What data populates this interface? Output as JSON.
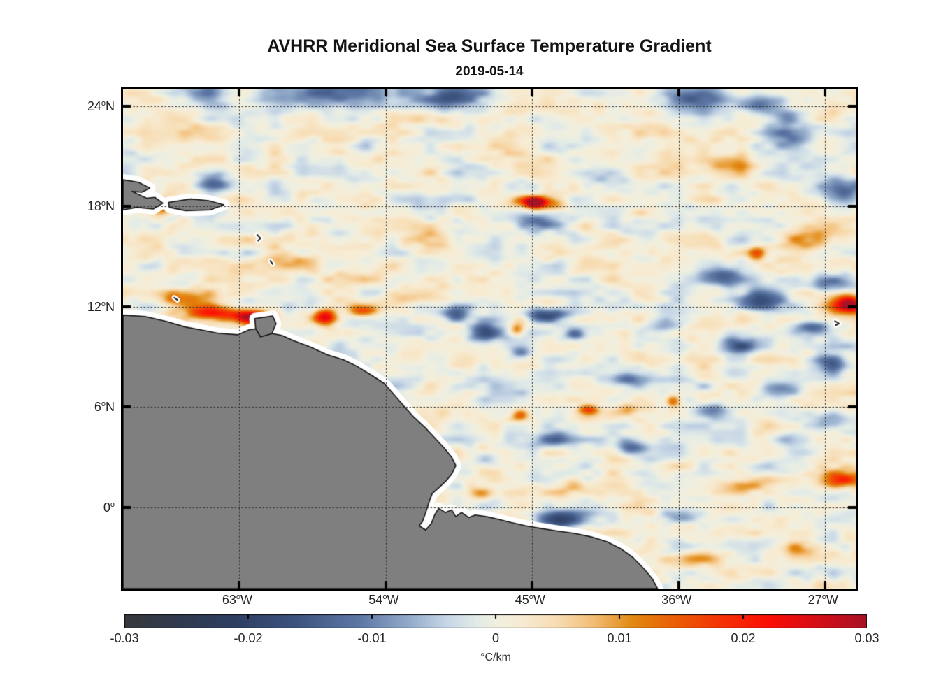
{
  "chart_data": {
    "type": "heatmap",
    "title": "AVHRR Meridional Sea Surface Temperature Gradient",
    "subtitle": "2019-05-14",
    "description": "Geographic heatmap of meridional SST gradient over the tropical western Atlantic; gray land mass is northeastern South America with Hispaniola and Puerto Rico at upper left; white band along coasts is a no-data buffer.",
    "axes": {
      "xlim": [
        -70.15,
        -25.12
      ],
      "ylim": [
        -4.85,
        25.04
      ],
      "grid": "dotted",
      "x_ticks": [
        {
          "deg": "63",
          "dir": "W",
          "value": -63
        },
        {
          "deg": "54",
          "dir": "W",
          "value": -54
        },
        {
          "deg": "45",
          "dir": "W",
          "value": -45
        },
        {
          "deg": "36",
          "dir": "W",
          "value": -36
        },
        {
          "deg": "27",
          "dir": "W",
          "value": -27
        }
      ],
      "y_ticks": [
        {
          "deg": "24",
          "dir": "N",
          "value": 24
        },
        {
          "deg": "18",
          "dir": "N",
          "value": 18
        },
        {
          "deg": "12",
          "dir": "N",
          "value": 12
        },
        {
          "deg": "6",
          "dir": "N",
          "value": 6
        },
        {
          "deg": "0",
          "dir": "",
          "value": 0
        }
      ]
    },
    "colorbar": {
      "min": -0.03,
      "max": 0.03,
      "unit": "°C/km",
      "ticks": [
        "-0.03",
        "-0.02",
        "-0.01",
        "0",
        "0.01",
        "0.02",
        "0.03"
      ],
      "tick_values": [
        -0.03,
        -0.02,
        -0.01,
        0,
        0.01,
        0.02,
        0.03
      ],
      "stops": [
        [
          -0.03,
          "#36393d"
        ],
        [
          -0.026,
          "#313a4c"
        ],
        [
          -0.021,
          "#2e3f63"
        ],
        [
          -0.016,
          "#3d5480"
        ],
        [
          -0.011,
          "#5d77a5"
        ],
        [
          -0.007,
          "#93abc9"
        ],
        [
          -0.004,
          "#c6d6e6"
        ],
        [
          -0.0015,
          "#e2ebe7"
        ],
        [
          0.0,
          "#f0efe0"
        ],
        [
          0.002,
          "#f7ecd4"
        ],
        [
          0.005,
          "#f7dcb2"
        ],
        [
          0.008,
          "#f2bc74"
        ],
        [
          0.011,
          "#e18a12"
        ],
        [
          0.014,
          "#e96408"
        ],
        [
          0.018,
          "#f53505"
        ],
        [
          0.022,
          "#fb0f04"
        ],
        [
          0.026,
          "#d50e17"
        ],
        [
          0.03,
          "#a81126"
        ]
      ]
    },
    "field": {
      "base": 0.0006,
      "noise1_amp": 0.0042,
      "noise2_amp": 0.0026
    },
    "features_format": "lon_deg, lat_deg, sigma_lon_deg, sigma_lat_deg, peak_value_C_per_km",
    "features": [
      [
        -57.5,
        24.8,
        3.5,
        0.9,
        -0.017
      ],
      [
        -50.2,
        24.6,
        2.4,
        0.8,
        -0.015
      ],
      [
        -34.8,
        24.4,
        2.4,
        0.9,
        -0.013
      ],
      [
        -30.8,
        24.1,
        1.4,
        0.7,
        -0.01
      ],
      [
        -65.6,
        24.8,
        1.8,
        0.7,
        -0.009
      ],
      [
        -29.4,
        23.3,
        0.8,
        0.5,
        -0.009
      ],
      [
        -29.2,
        22.3,
        1.5,
        0.8,
        -0.01
      ],
      [
        -26.2,
        19.0,
        1.4,
        0.9,
        -0.016
      ],
      [
        -64.6,
        19.5,
        1.1,
        0.6,
        -0.012
      ],
      [
        -44.4,
        17.0,
        1.6,
        0.6,
        -0.017
      ],
      [
        -49.6,
        11.5,
        1.0,
        0.55,
        -0.016
      ],
      [
        -47.9,
        10.4,
        1.2,
        0.6,
        -0.017
      ],
      [
        -44.1,
        11.5,
        1.4,
        0.5,
        -0.019
      ],
      [
        -42.3,
        10.3,
        0.7,
        0.4,
        -0.011
      ],
      [
        -45.7,
        9.2,
        0.8,
        0.35,
        -0.009
      ],
      [
        -33.1,
        13.7,
        1.4,
        0.6,
        -0.013
      ],
      [
        -30.9,
        12.4,
        1.7,
        0.7,
        -0.016
      ],
      [
        -26.5,
        13.3,
        1.3,
        0.7,
        -0.015
      ],
      [
        -27.8,
        10.7,
        1.1,
        0.5,
        -0.011
      ],
      [
        -32.2,
        9.6,
        1.5,
        0.6,
        -0.013
      ],
      [
        -26.5,
        8.6,
        1.3,
        0.6,
        -0.013
      ],
      [
        -29.7,
        7.0,
        1.6,
        0.6,
        -0.012
      ],
      [
        -26.5,
        5.3,
        1.4,
        0.6,
        -0.012
      ],
      [
        -29.2,
        4.0,
        1.3,
        0.5,
        -0.01
      ],
      [
        -39.1,
        7.6,
        1.4,
        0.5,
        -0.012
      ],
      [
        -33.9,
        5.7,
        1.3,
        0.5,
        -0.011
      ],
      [
        -38.8,
        3.5,
        1.0,
        0.45,
        -0.012
      ],
      [
        -43.7,
        4.0,
        1.1,
        0.5,
        -0.012
      ],
      [
        -47.7,
        2.8,
        0.9,
        0.45,
        -0.009
      ],
      [
        -43.2,
        -0.8,
        1.8,
        0.55,
        -0.018
      ],
      [
        -35.7,
        -0.5,
        1.4,
        0.5,
        -0.007
      ],
      [
        -41.2,
        19.9,
        1.8,
        0.7,
        -0.006
      ],
      [
        -58.4,
        17.8,
        1.5,
        0.7,
        -0.006
      ],
      [
        -36.9,
        10.8,
        1.4,
        0.6,
        -0.007
      ],
      [
        -44.6,
        18.2,
        1.5,
        0.45,
        0.02
      ],
      [
        -44.8,
        18.25,
        0.55,
        0.3,
        0.026
      ],
      [
        -67.6,
        17.9,
        0.9,
        0.45,
        0.013
      ],
      [
        -66.3,
        12.4,
        1.8,
        0.6,
        0.012
      ],
      [
        -64.6,
        11.6,
        2.0,
        0.5,
        0.02
      ],
      [
        -62.2,
        11.35,
        1.2,
        0.45,
        0.028
      ],
      [
        -57.7,
        11.35,
        0.8,
        0.5,
        0.024
      ],
      [
        -55.3,
        11.7,
        0.9,
        0.4,
        0.016
      ],
      [
        -25.4,
        12.1,
        0.9,
        0.55,
        0.024
      ],
      [
        -26.1,
        12.1,
        1.7,
        0.8,
        0.01
      ],
      [
        -31.1,
        15.2,
        0.6,
        0.4,
        0.015
      ],
      [
        -45.9,
        10.6,
        0.5,
        0.4,
        0.013
      ],
      [
        -41.5,
        5.75,
        0.7,
        0.35,
        0.017
      ],
      [
        -36.3,
        6.3,
        0.5,
        0.4,
        0.015
      ],
      [
        -38.7,
        5.8,
        1.1,
        0.4,
        0.008
      ],
      [
        -45.7,
        5.4,
        0.6,
        0.4,
        0.014
      ],
      [
        -48.1,
        0.8,
        0.8,
        0.4,
        0.012
      ],
      [
        -42.3,
        1.2,
        1.3,
        0.5,
        0.009
      ],
      [
        -26.0,
        1.6,
        1.5,
        0.6,
        0.019
      ],
      [
        -32.2,
        1.2,
        1.7,
        0.5,
        0.009
      ],
      [
        -28.6,
        -2.6,
        1.6,
        0.6,
        0.01
      ],
      [
        -34.6,
        -3.1,
        1.7,
        0.5,
        0.007
      ],
      [
        -64.7,
        22.4,
        2.0,
        0.7,
        0.006
      ],
      [
        -47.7,
        21.5,
        2.6,
        0.8,
        0.005
      ],
      [
        -32.7,
        20.3,
        2.2,
        0.8,
        0.007
      ],
      [
        -56.2,
        13.7,
        2.2,
        0.7,
        0.007
      ],
      [
        -51.9,
        16.1,
        2.1,
        0.8,
        0.005
      ],
      [
        -39.1,
        15.3,
        2.4,
        0.8,
        0.005
      ],
      [
        -28.3,
        16.1,
        1.7,
        0.7,
        0.008
      ],
      [
        -59.8,
        14.8,
        1.8,
        0.6,
        0.006
      ],
      [
        -53.0,
        12.5,
        1.6,
        0.5,
        0.006
      ]
    ],
    "map": {
      "land_color": "#7f7f7f",
      "coast_color": "#141414",
      "buffer_color": "#ffffff",
      "coastline": [
        [
          -70.15,
          11.5
        ],
        [
          -68.8,
          11.42
        ],
        [
          -67.5,
          11.13
        ],
        [
          -66.3,
          10.79
        ],
        [
          -65.4,
          10.63
        ],
        [
          -64.3,
          10.42
        ],
        [
          -63.1,
          10.33
        ],
        [
          -62.4,
          10.63
        ],
        [
          -61.8,
          10.71
        ],
        [
          -61.3,
          10.46
        ],
        [
          -60.4,
          10.29
        ],
        [
          -59.7,
          9.99
        ],
        [
          -58.6,
          9.58
        ],
        [
          -57.6,
          9.13
        ],
        [
          -56.6,
          8.83
        ],
        [
          -55.8,
          8.46
        ],
        [
          -54.9,
          7.92
        ],
        [
          -54.1,
          7.42
        ],
        [
          -53.5,
          6.75
        ],
        [
          -52.9,
          6.08
        ],
        [
          -52.3,
          5.42
        ],
        [
          -51.6,
          4.79
        ],
        [
          -51.0,
          4.17
        ],
        [
          -50.4,
          3.54
        ],
        [
          -49.95,
          3.0
        ],
        [
          -49.7,
          2.5
        ],
        [
          -49.95,
          2.0
        ],
        [
          -50.35,
          1.54
        ],
        [
          -50.8,
          1.13
        ],
        [
          -51.15,
          0.83
        ],
        [
          -51.35,
          0.3
        ],
        [
          -51.55,
          -0.3
        ],
        [
          -51.75,
          -0.85
        ],
        [
          -51.95,
          -1.1
        ],
        [
          -51.55,
          -1.35
        ],
        [
          -51.2,
          -0.95
        ],
        [
          -51.0,
          -0.45
        ],
        [
          -50.75,
          -0.05
        ],
        [
          -50.35,
          -0.3
        ],
        [
          -49.95,
          -0.15
        ],
        [
          -49.7,
          -0.55
        ],
        [
          -49.35,
          -0.3
        ],
        [
          -48.9,
          -0.6
        ],
        [
          -48.5,
          -0.45
        ],
        [
          -47.8,
          -0.55
        ],
        [
          -47.1,
          -0.7
        ],
        [
          -46.3,
          -0.9
        ],
        [
          -45.4,
          -1.1
        ],
        [
          -44.5,
          -1.25
        ],
        [
          -43.5,
          -1.4
        ],
        [
          -42.4,
          -1.55
        ],
        [
          -41.4,
          -1.75
        ],
        [
          -40.4,
          -2.05
        ],
        [
          -39.5,
          -2.5
        ],
        [
          -38.8,
          -3.0
        ],
        [
          -38.1,
          -3.7
        ],
        [
          -37.6,
          -4.3
        ],
        [
          -37.3,
          -4.85
        ],
        [
          -70.15,
          -4.85
        ]
      ],
      "islands": [
        {
          "name": "hispaniola",
          "pts": [
            [
              -70.15,
              19.6
            ],
            [
              -69.2,
              19.45
            ],
            [
              -68.5,
              19.1
            ],
            [
              -69.0,
              18.85
            ],
            [
              -69.6,
              18.9
            ],
            [
              -68.7,
              18.5
            ],
            [
              -68.2,
              18.55
            ],
            [
              -67.7,
              18.2
            ],
            [
              -68.3,
              17.85
            ],
            [
              -69.3,
              17.95
            ],
            [
              -70.15,
              17.8
            ]
          ]
        },
        {
          "name": "puerto-rico",
          "pts": [
            [
              -67.35,
              18.25
            ],
            [
              -66.0,
              18.45
            ],
            [
              -64.9,
              18.35
            ],
            [
              -63.95,
              18.1
            ],
            [
              -64.8,
              17.8
            ],
            [
              -66.3,
              17.75
            ],
            [
              -67.3,
              17.95
            ]
          ]
        },
        {
          "name": "trinidad",
          "pts": [
            [
              -62.05,
              11.3
            ],
            [
              -60.95,
              11.45
            ],
            [
              -60.75,
              11.0
            ],
            [
              -61.0,
              10.4
            ],
            [
              -61.7,
              10.2
            ],
            [
              -62.0,
              10.7
            ]
          ]
        }
      ],
      "island_marks": [
        [
          [
            -61.9,
            16.3
          ],
          [
            -61.7,
            16.1
          ],
          [
            -61.85,
            15.95
          ]
        ],
        [
          [
            -61.1,
            14.75
          ],
          [
            -60.95,
            14.55
          ]
        ],
        [
          [
            -67.0,
            12.55
          ],
          [
            -66.8,
            12.4
          ]
        ],
        [
          [
            -26.4,
            11.15
          ],
          [
            -26.15,
            11.0
          ],
          [
            -26.35,
            10.9
          ]
        ]
      ]
    }
  }
}
